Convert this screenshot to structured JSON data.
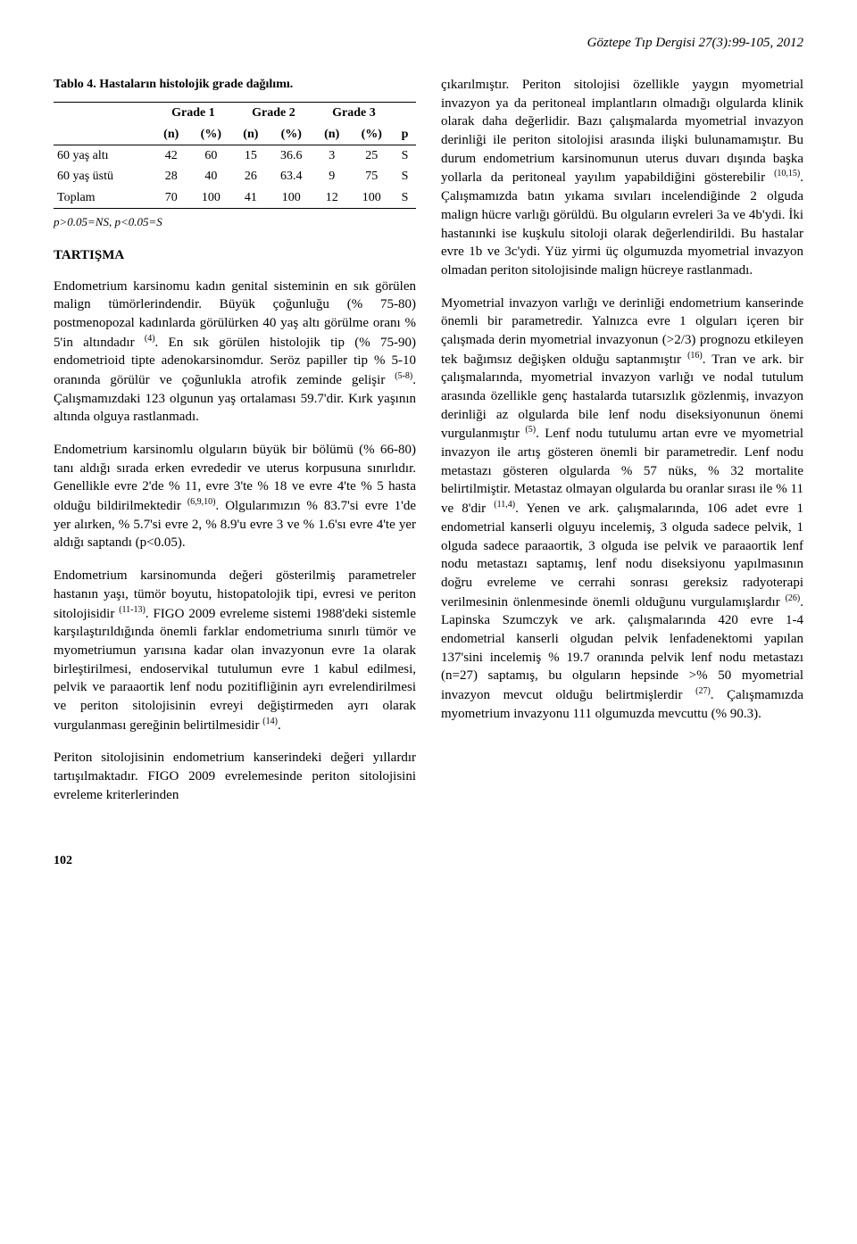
{
  "journal_header": "Göztepe Tıp Dergisi 27(3):99-105, 2012",
  "table": {
    "caption": "Tablo 4. Hastaların histolojik grade dağılımı.",
    "group_headers": [
      "Grade 1",
      "Grade 2",
      "Grade 3",
      ""
    ],
    "sub_headers": [
      "(n)",
      "(%)",
      "(n)",
      "(%)",
      "(n)",
      "(%)",
      "p"
    ],
    "rows": [
      {
        "label": "60 yaş altı",
        "cells": [
          "42",
          "60",
          "15",
          "36.6",
          "3",
          "25",
          "S"
        ]
      },
      {
        "label": "60 yaş üstü",
        "cells": [
          "28",
          "40",
          "26",
          "63.4",
          "9",
          "75",
          "S"
        ]
      },
      {
        "label": "Toplam",
        "cells": [
          "70",
          "100",
          "41",
          "100",
          "12",
          "100",
          "S"
        ]
      }
    ],
    "footnote": "p>0.05=NS, p<0.05=S"
  },
  "section_title": "TARTIŞMA",
  "left_paragraphs": {
    "p1a": "Endometrium karsinomu kadın genital sisteminin en sık görülen malign tümörlerindendir. Büyük çoğunluğu (% 75-80) postmenopozal kadınlarda görülürken 40 yaş altı görülme oranı % 5'in altındadır ",
    "p1sup1": "(4)",
    "p1b": ". En sık görülen histolojik tip (% 75-90) endometrioid tipte adenokarsinomdur. Seröz papiller tip % 5-10 oranında görülür ve çoğunlukla atrofik zeminde gelişir ",
    "p1sup2": "(5-8)",
    "p1c": ". Çalışmamızdaki 123 olgunun yaş ortalaması 59.7'dir. Kırk yaşının altında olguya rastlanmadı.",
    "p2a": "Endometrium karsinomlu olguların büyük bir bölümü (% 66-80) tanı aldığı sırada erken evrededir ve uterus korpusuna sınırlıdır. Genellikle evre 2'de % 11, evre 3'te % 18 ve evre 4'te % 5 hasta olduğu bildirilmektedir ",
    "p2sup1": "(6,9,10)",
    "p2b": ". Olgularımızın % 83.7'si evre 1'de yer alırken, % 5.7'si evre 2, % 8.9'u evre 3 ve % 1.6'sı evre 4'te yer aldığı saptandı (p<0.05).",
    "p3a": "Endometrium karsinomunda değeri gösterilmiş parametreler hastanın yaşı, tümör boyutu, histopatolojik tipi, evresi ve periton sitolojisidir ",
    "p3sup1": "(11-13)",
    "p3b": ". FIGO 2009 evreleme sistemi 1988'deki sistemle karşılaştırıldığında önemli farklar endometriuma sınırlı tümör ve myometriumun yarısına kadar olan invazyonun evre 1a olarak birleştirilmesi, endoservikal tutulumun evre 1 kabul edilmesi, pelvik ve paraaortik lenf nodu pozitifliğinin ayrı evrelendirilmesi ve periton sitolojisinin evreyi değiştirmeden ayrı olarak vurgulanması gereğinin belirtilmesidir ",
    "p3sup2": "(14)",
    "p3c": ".",
    "p4": "Periton sitolojisinin endometrium kanserindeki değeri yıllardır tartışılmaktadır. FIGO 2009 evrelemesinde periton sitolojisini evreleme kriterlerinden"
  },
  "right_paragraphs": {
    "p1a": "çıkarılmıştır. Periton sitolojisi özellikle yaygın myometrial invazyon ya da peritoneal implantların olmadığı olgularda klinik olarak daha değerlidir. Bazı çalışmalarda myometrial invazyon derinliği ile periton sitolojisi arasında ilişki bulunamamıştır. Bu durum endometrium karsinomunun uterus duvarı dışında başka yollarla da peritoneal yayılım yapabildiğini gösterebilir ",
    "p1sup1": "(10,15)",
    "p1b": ". Çalışmamızda batın yıkama sıvıları incelendiğinde 2 olguda malign hücre varlığı görüldü. Bu olguların evreleri 3a ve 4b'ydi. İki hastanınki ise kuşkulu sitoloji olarak değerlendirildi. Bu hastalar evre 1b ve 3c'ydi. Yüz yirmi üç olgumuzda myometrial invazyon olmadan periton sitolojisinde malign hücreye rastlanmadı.",
    "p2a": "Myometrial invazyon varlığı ve derinliği endometrium kanserinde önemli bir parametredir. Yalnızca evre 1 olguları içeren bir çalışmada derin myometrial invazyonun (>2/3) prognozu etkileyen tek bağımsız değişken olduğu saptanmıştır ",
    "p2sup1": "(16)",
    "p2b": ". Tran ve ark. bir çalışmalarında, myometrial invazyon varlığı ve nodal tutulum arasında özellikle genç hastalarda tutarsızlık gözlenmiş, invazyon derinliği az olgularda bile lenf nodu diseksiyonunun önemi vurgulanmıştır ",
    "p2sup2": "(5)",
    "p2c": ". Lenf nodu tutulumu artan evre ve myometrial invazyon ile artış gösteren önemli bir parametredir. Lenf nodu metastazı gösteren olgularda % 57 nüks, % 32 mortalite belirtilmiştir. Metastaz olmayan olgularda bu oranlar sırası ile % 11 ve 8'dir ",
    "p2sup3": "(11,4)",
    "p2d": ". Yenen ve ark. çalışmalarında, 106 adet evre 1 endometrial kanserli olguyu incelemiş, 3 olguda sadece pelvik, 1 olguda sadece paraaortik, 3 olguda ise pelvik ve paraaortik lenf nodu metastazı saptamış, lenf nodu diseksiyonu yapılmasının doğru evreleme ve cerrahi sonrası gereksiz radyoterapi verilmesinin önlenmesinde önemli olduğunu vurgulamışlardır ",
    "p2sup4": "(26)",
    "p2e": ". Lapinska Szumczyk ve ark. çalışmalarında 420 evre 1-4 endometrial kanserli olgudan pelvik lenfadenektomi yapılan 137'sini incelemiş % 19.7 oranında pelvik lenf nodu metastazı (n=27) saptamış, bu olguların hepsinde >% 50 myometrial invazyon mevcut olduğu belirtmişlerdir ",
    "p2sup5": "(27)",
    "p2f": ". Çalışmamızda myometrium invazyonu 111 olgumuzda mevcuttu (% 90.3)."
  },
  "page_number": "102"
}
